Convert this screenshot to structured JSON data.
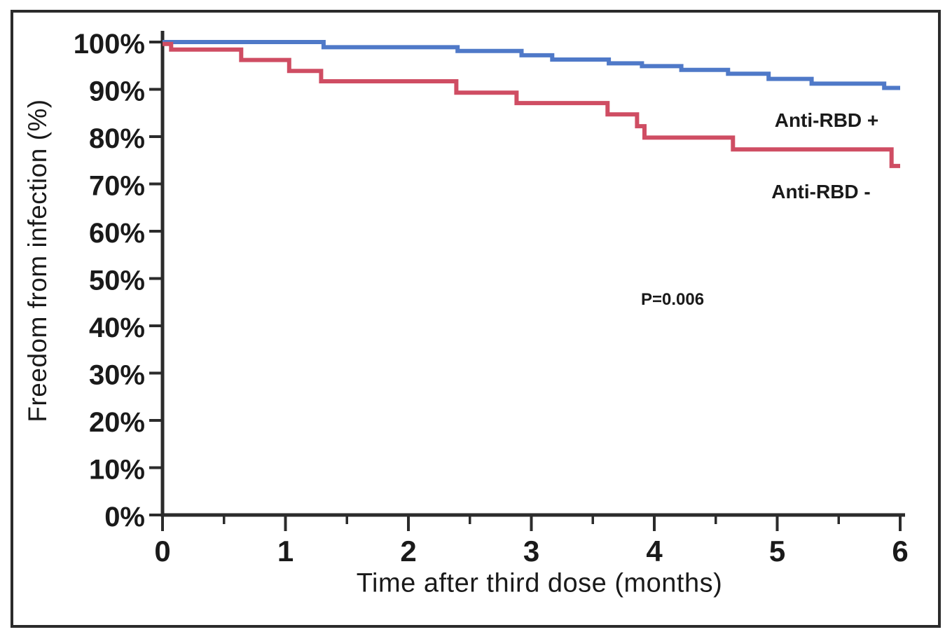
{
  "chart_data": {
    "type": "line",
    "subtype": "kaplan-meier-step",
    "title": "",
    "xlabel": "Time after third dose (months)",
    "ylabel": "Freedom from infection (%)",
    "xlim": [
      0,
      6
    ],
    "ylim": [
      0,
      100
    ],
    "grid": false,
    "legend_position": "inline-right",
    "x_tick_values": [
      0,
      1,
      2,
      3,
      4,
      5,
      6
    ],
    "x_tick_labels": [
      "0",
      "1",
      "2",
      "3",
      "4",
      "5",
      "6"
    ],
    "x_minor_tick_values": [
      0.5,
      1.5,
      2.5,
      3.5,
      4.5,
      5.5
    ],
    "y_tick_values": [
      0,
      10,
      20,
      30,
      40,
      50,
      60,
      70,
      80,
      90,
      100
    ],
    "y_tick_labels": [
      "0%",
      "10%",
      "20%",
      "30%",
      "40%",
      "50%",
      "60%",
      "70%",
      "80%",
      "90%",
      "100%"
    ],
    "axis_color": "#2b2b2b",
    "annotations": [
      {
        "text": "P=0.006",
        "x": 4.15,
        "y": 45.5
      }
    ],
    "series": [
      {
        "name": "Anti-RBD +",
        "color": "#4f79c8",
        "x_end": 6.0,
        "points": [
          [
            0,
            100
          ],
          [
            1.31,
            98.9
          ],
          [
            2.4,
            98.1
          ],
          [
            2.92,
            97.2
          ],
          [
            3.17,
            96.3
          ],
          [
            3.63,
            95.5
          ],
          [
            3.9,
            94.9
          ],
          [
            4.22,
            94.1
          ],
          [
            4.6,
            93.3
          ],
          [
            4.93,
            92.2
          ],
          [
            5.28,
            91.2
          ],
          [
            5.87,
            90.3
          ]
        ]
      },
      {
        "name": "Anti-RBD -",
        "color": "#cf4d63",
        "x_end": 6.0,
        "points": [
          [
            0,
            99.6
          ],
          [
            0.07,
            98.4
          ],
          [
            0.64,
            96.2
          ],
          [
            1.03,
            93.9
          ],
          [
            1.29,
            91.7
          ],
          [
            2.39,
            89.3
          ],
          [
            2.88,
            87.1
          ],
          [
            3.62,
            84.7
          ],
          [
            3.86,
            82.2
          ],
          [
            3.92,
            79.8
          ],
          [
            4.64,
            77.3
          ],
          [
            5.93,
            73.8
          ]
        ]
      }
    ]
  }
}
